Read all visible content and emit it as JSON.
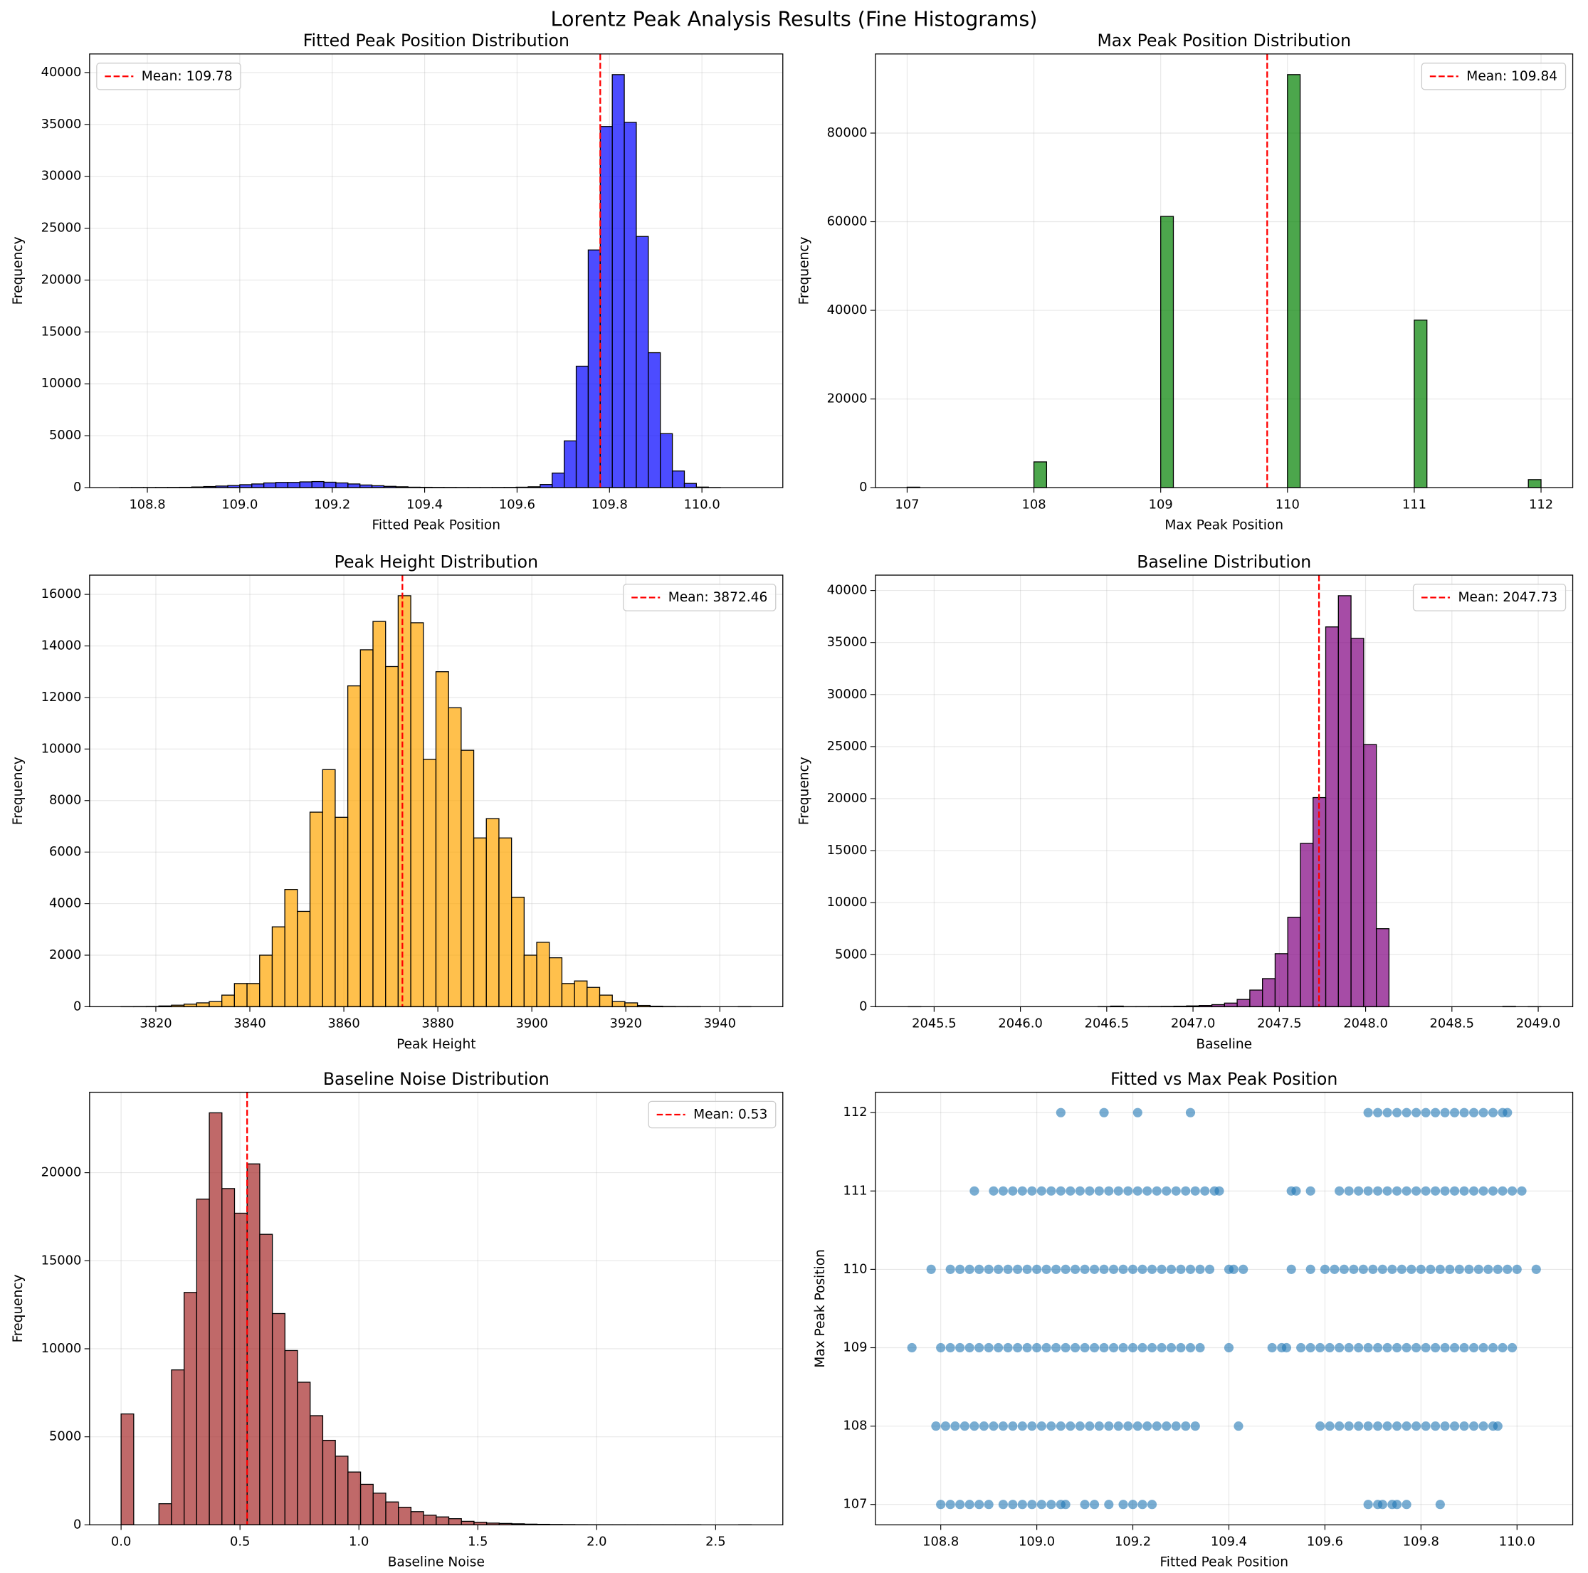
{
  "title": "Lorentz Peak Analysis Results (Fine Histograms)",
  "chart_data": [
    {
      "type": "histogram",
      "title": "Fitted Peak Position Distribution",
      "x_label": "Fitted Peak Position",
      "y_label": "Frequency",
      "bins": [
        108.74,
        108.766,
        108.792,
        108.818,
        108.844,
        108.87,
        108.896,
        108.922,
        108.948,
        108.974,
        109.0,
        109.026,
        109.052,
        109.078,
        109.104,
        109.13,
        109.156,
        109.182,
        109.208,
        109.234,
        109.26,
        109.286,
        109.312,
        109.338,
        109.364,
        109.39,
        109.416,
        109.442,
        109.468,
        109.494,
        109.52,
        109.546,
        109.572,
        109.598,
        109.624,
        109.65,
        109.676,
        109.702,
        109.728,
        109.754,
        109.78,
        109.806,
        109.832,
        109.858,
        109.884,
        109.91,
        109.936,
        109.962,
        109.988,
        110.014,
        110.04
      ],
      "counts": [
        5,
        10,
        10,
        15,
        20,
        30,
        60,
        100,
        150,
        200,
        280,
        350,
        450,
        500,
        500,
        550,
        580,
        520,
        450,
        350,
        250,
        180,
        120,
        80,
        40,
        30,
        20,
        15,
        10,
        10,
        10,
        15,
        20,
        40,
        80,
        300,
        1400,
        4500,
        11700,
        22900,
        34800,
        39800,
        35200,
        24200,
        13000,
        5200,
        1600,
        400,
        50,
        5
      ],
      "color": "blue",
      "alpha": 0.7,
      "xlim": [
        108.675,
        110.175
      ],
      "ylim": [
        0,
        41790
      ],
      "xticks": [
        108.8,
        {
          "value": 109,
          "label": "109.0"
        },
        109.2,
        109.4,
        109.6,
        109.8,
        {
          "value": 110,
          "label": "110.0"
        }
      ],
      "yticks": [
        0,
        5000,
        10000,
        15000,
        20000,
        25000,
        30000,
        35000,
        40000
      ],
      "grid": true,
      "mean_line": {
        "x": 109.78,
        "label": "Mean: 109.78",
        "color": "red"
      },
      "legend": "upper left"
    },
    {
      "type": "histogram",
      "title": "Max Peak Position Distribution",
      "x_label": "Max Peak Position",
      "y_label": "Frequency",
      "bins": [
        107.0,
        107.1,
        107.2,
        107.3,
        107.4,
        107.5,
        107.6,
        107.7,
        107.8,
        107.9,
        108.0,
        108.1,
        108.2,
        108.3,
        108.4,
        108.5,
        108.6,
        108.7,
        108.8,
        108.9,
        109.0,
        109.1,
        109.2,
        109.3,
        109.4,
        109.5,
        109.6,
        109.7,
        109.8,
        109.9,
        110.0,
        110.1,
        110.2,
        110.3,
        110.4,
        110.5,
        110.6,
        110.7,
        110.8,
        110.9,
        111.0,
        111.1,
        111.2,
        111.3,
        111.4,
        111.5,
        111.6,
        111.7,
        111.8,
        111.9,
        112.0
      ],
      "counts": [
        100,
        0,
        0,
        0,
        0,
        0,
        0,
        0,
        0,
        0,
        5800,
        0,
        0,
        0,
        0,
        0,
        0,
        0,
        0,
        0,
        61200,
        0,
        0,
        0,
        0,
        0,
        0,
        0,
        0,
        0,
        93200,
        0,
        0,
        0,
        0,
        0,
        0,
        0,
        0,
        0,
        37800,
        0,
        0,
        0,
        0,
        0,
        0,
        0,
        0,
        1800
      ],
      "color": "green",
      "alpha": 0.7,
      "xlim": [
        106.75,
        112.25
      ],
      "ylim": [
        0,
        97860
      ],
      "xticks": [
        107,
        108,
        109,
        110,
        111,
        112
      ],
      "yticks": [
        0,
        20000,
        40000,
        60000,
        80000
      ],
      "grid": true,
      "mean_line": {
        "x": 109.84,
        "label": "Mean: 109.84",
        "color": "red"
      },
      "legend": "upper right"
    },
    {
      "type": "histogram",
      "title": "Peak Height Distribution",
      "x_label": "Peak Height",
      "y_label": "Frequency",
      "bins": [
        3812.6,
        3815.28,
        3817.96,
        3820.64,
        3823.32,
        3826.0,
        3828.68,
        3831.36,
        3834.04,
        3836.72,
        3839.4,
        3842.08,
        3844.76,
        3847.44,
        3850.12,
        3852.8,
        3855.48,
        3858.16,
        3860.84,
        3863.52,
        3866.2,
        3868.88,
        3871.56,
        3874.24,
        3876.92,
        3879.6,
        3882.28,
        3884.96,
        3887.64,
        3890.32,
        3893.0,
        3895.68,
        3898.36,
        3901.04,
        3903.72,
        3906.4,
        3909.08,
        3911.76,
        3914.44,
        3917.12,
        3919.8,
        3922.48,
        3925.16,
        3927.84,
        3930.52,
        3933.2,
        3935.88,
        3938.56,
        3941.24,
        3943.92,
        3946.6
      ],
      "counts": [
        2,
        5,
        10,
        30,
        60,
        100,
        150,
        200,
        450,
        900,
        900,
        2000,
        3100,
        4550,
        3700,
        7550,
        9200,
        7350,
        12450,
        13850,
        14950,
        13200,
        15950,
        14900,
        9600,
        13000,
        11600,
        9950,
        6550,
        7300,
        6550,
        4250,
        2000,
        2500,
        1900,
        900,
        1000,
        750,
        450,
        200,
        150,
        50,
        20,
        10,
        5,
        5,
        0,
        0,
        0,
        2
      ],
      "color": "orange",
      "alpha": 0.7,
      "xlim": [
        3805.9,
        3953.4
      ],
      "ylim": [
        0,
        16747.5
      ],
      "xticks": [
        3820,
        3840,
        3860,
        3880,
        3900,
        3920,
        3940
      ],
      "yticks": [
        0,
        2000,
        4000,
        6000,
        8000,
        10000,
        12000,
        14000,
        16000
      ],
      "grid": true,
      "mean_line": {
        "x": 3872.46,
        "label": "Mean: 3872.46",
        "color": "red"
      },
      "legend": "upper right"
    },
    {
      "type": "histogram",
      "title": "Baseline Distribution",
      "x_label": "Baseline",
      "y_label": "Frequency",
      "bins": [
        2045.35,
        2045.4233,
        2045.4966,
        2045.5699,
        2045.6432,
        2045.7165,
        2045.7898,
        2045.8631,
        2045.9364,
        2046.0097,
        2046.083,
        2046.1563,
        2046.2296,
        2046.3029,
        2046.3762,
        2046.4495,
        2046.5228,
        2046.5961,
        2046.6694,
        2046.7427,
        2046.816,
        2046.8893,
        2046.9626,
        2047.0359,
        2047.1092,
        2047.1825,
        2047.2558,
        2047.3291,
        2047.4024,
        2047.4757,
        2047.549,
        2047.6223,
        2047.6956,
        2047.7689,
        2047.8422,
        2047.9155,
        2047.9888,
        2048.0621,
        2048.1354,
        2048.2087,
        2048.282,
        2048.3553,
        2048.4286,
        2048.5019,
        2048.5752,
        2048.6485,
        2048.7218,
        2048.7951,
        2048.8684,
        2048.9417,
        2049.015
      ],
      "counts": [
        1,
        0,
        0,
        0,
        0,
        0,
        0,
        0,
        0,
        0,
        0,
        0,
        0,
        0,
        0,
        10,
        60,
        5,
        10,
        20,
        30,
        50,
        80,
        120,
        200,
        350,
        700,
        1600,
        2700,
        5100,
        8600,
        15700,
        20100,
        36500,
        39500,
        35400,
        25200,
        7500,
        0,
        0,
        0,
        0,
        0,
        0,
        0,
        0,
        0,
        30,
        0,
        1
      ],
      "color": "purple",
      "alpha": 0.7,
      "xlim": [
        2045.16,
        2049.2
      ],
      "ylim": [
        0,
        41475
      ],
      "xticks": [
        2045.5,
        {
          "value": 2046,
          "label": "2046.0"
        },
        2046.5,
        {
          "value": 2047,
          "label": "2047.0"
        },
        2047.5,
        {
          "value": 2048,
          "label": "2048.0"
        },
        2048.5,
        {
          "value": 2049,
          "label": "2049.0"
        }
      ],
      "yticks": [
        0,
        5000,
        10000,
        15000,
        20000,
        25000,
        30000,
        35000,
        40000
      ],
      "grid": true,
      "mean_line": {
        "x": 2047.73,
        "label": "Mean: 2047.73",
        "color": "red"
      },
      "legend": "upper right"
    },
    {
      "type": "histogram",
      "title": "Baseline Noise Distribution",
      "x_label": "Baseline Noise",
      "y_label": "Frequency",
      "bins": [
        0,
        0.053,
        0.106,
        0.159,
        0.212,
        0.265,
        0.318,
        0.371,
        0.424,
        0.477,
        0.53,
        0.583,
        0.636,
        0.689,
        0.742,
        0.795,
        0.848,
        0.901,
        0.954,
        1.007,
        1.06,
        1.113,
        1.166,
        1.219,
        1.272,
        1.325,
        1.378,
        1.431,
        1.484,
        1.537,
        1.59,
        1.643,
        1.696,
        1.749,
        1.802,
        1.855,
        1.908,
        1.961,
        2.014,
        2.067,
        2.12,
        2.173,
        2.226,
        2.279,
        2.332,
        2.385,
        2.438,
        2.491,
        2.544,
        2.597,
        2.65
      ],
      "counts": [
        6300,
        0,
        0,
        1200,
        8800,
        13200,
        18500,
        23400,
        19100,
        17700,
        20500,
        16500,
        12000,
        9900,
        8100,
        6200,
        4800,
        3900,
        3000,
        2300,
        1800,
        1300,
        1000,
        750,
        550,
        450,
        350,
        200,
        150,
        100,
        80,
        60,
        40,
        30,
        20,
        15,
        10,
        8,
        5,
        4,
        3,
        2,
        2,
        1,
        1,
        1,
        0,
        0,
        0,
        1
      ],
      "color": "brown",
      "alpha": 0.7,
      "xlim": [
        -0.1325,
        2.7825
      ],
      "ylim": [
        0,
        24570
      ],
      "xticks": [
        {
          "value": 0,
          "label": "0.0"
        },
        0.5,
        {
          "value": 1,
          "label": "1.0"
        },
        1.5,
        {
          "value": 2,
          "label": "2.0"
        },
        2.5
      ],
      "yticks": [
        0,
        5000,
        10000,
        15000,
        20000
      ],
      "grid": true,
      "mean_line": {
        "x": 0.53,
        "label": "Mean: 0.53",
        "color": "red"
      },
      "legend": "upper right"
    },
    {
      "type": "scatter",
      "title": "Fitted vs Max Peak Position",
      "x_label": "Fitted Peak Position",
      "y_label": "Max Peak Position",
      "x": [
        109.05,
        109.14,
        109.21,
        109.32,
        109.69,
        109.71,
        109.73,
        109.75,
        109.77,
        109.79,
        109.81,
        109.83,
        109.85,
        109.87,
        109.89,
        109.91,
        109.93,
        109.95,
        109.97,
        109.98,
        108.87,
        108.91,
        108.93,
        108.95,
        108.97,
        108.99,
        109.01,
        109.03,
        109.05,
        109.07,
        109.09,
        109.11,
        109.13,
        109.15,
        109.17,
        109.19,
        109.21,
        109.23,
        109.25,
        109.27,
        109.29,
        109.31,
        109.33,
        109.35,
        109.37,
        109.38,
        109.53,
        109.54,
        109.57,
        109.63,
        109.65,
        109.67,
        109.69,
        109.71,
        109.73,
        109.75,
        109.77,
        109.79,
        109.81,
        109.83,
        109.85,
        109.87,
        109.89,
        109.91,
        109.93,
        109.95,
        109.97,
        109.99,
        110.01,
        108.78,
        108.82,
        108.84,
        108.86,
        108.88,
        108.9,
        108.92,
        108.94,
        108.96,
        108.98,
        109,
        109.02,
        109.04,
        109.06,
        109.08,
        109.1,
        109.12,
        109.14,
        109.16,
        109.18,
        109.2,
        109.22,
        109.24,
        109.26,
        109.28,
        109.3,
        109.32,
        109.34,
        109.36,
        109.4,
        109.41,
        109.43,
        109.53,
        109.57,
        109.6,
        109.62,
        109.64,
        109.66,
        109.68,
        109.7,
        109.72,
        109.74,
        109.76,
        109.78,
        109.8,
        109.82,
        109.84,
        109.86,
        109.88,
        109.9,
        109.92,
        109.94,
        109.96,
        109.98,
        110,
        110.04,
        108.74,
        108.8,
        108.82,
        108.84,
        108.86,
        108.88,
        108.9,
        108.92,
        108.94,
        108.96,
        108.98,
        109,
        109.02,
        109.04,
        109.06,
        109.08,
        109.1,
        109.12,
        109.14,
        109.16,
        109.18,
        109.2,
        109.22,
        109.24,
        109.26,
        109.28,
        109.3,
        109.32,
        109.34,
        109.4,
        109.49,
        109.51,
        109.52,
        109.55,
        109.57,
        109.59,
        109.61,
        109.63,
        109.65,
        109.67,
        109.69,
        109.71,
        109.73,
        109.75,
        109.77,
        109.79,
        109.81,
        109.83,
        109.85,
        109.87,
        109.89,
        109.91,
        109.93,
        109.95,
        109.97,
        109.99,
        108.79,
        108.81,
        108.83,
        108.85,
        108.87,
        108.89,
        108.91,
        108.93,
        108.95,
        108.97,
        108.99,
        109.01,
        109.03,
        109.05,
        109.07,
        109.09,
        109.11,
        109.13,
        109.15,
        109.17,
        109.19,
        109.21,
        109.23,
        109.25,
        109.27,
        109.29,
        109.31,
        109.33,
        109.42,
        109.59,
        109.61,
        109.63,
        109.65,
        109.67,
        109.69,
        109.71,
        109.73,
        109.75,
        109.77,
        109.79,
        109.81,
        109.83,
        109.85,
        109.87,
        109.89,
        109.91,
        109.93,
        109.95,
        109.96,
        108.8,
        108.82,
        108.84,
        108.86,
        108.88,
        108.9,
        108.93,
        108.95,
        108.97,
        108.99,
        109.01,
        109.03,
        109.05,
        109.06,
        109.1,
        109.12,
        109.15,
        109.18,
        109.2,
        109.22,
        109.24,
        109.69,
        109.71,
        109.72,
        109.74,
        109.75,
        109.77,
        109.84
      ],
      "y": [
        112,
        112,
        112,
        112,
        112,
        112,
        112,
        112,
        112,
        112,
        112,
        112,
        112,
        112,
        112,
        112,
        112,
        112,
        112,
        112,
        111,
        111,
        111,
        111,
        111,
        111,
        111,
        111,
        111,
        111,
        111,
        111,
        111,
        111,
        111,
        111,
        111,
        111,
        111,
        111,
        111,
        111,
        111,
        111,
        111,
        111,
        111,
        111,
        111,
        111,
        111,
        111,
        111,
        111,
        111,
        111,
        111,
        111,
        111,
        111,
        111,
        111,
        111,
        111,
        111,
        111,
        111,
        111,
        111,
        110,
        110,
        110,
        110,
        110,
        110,
        110,
        110,
        110,
        110,
        110,
        110,
        110,
        110,
        110,
        110,
        110,
        110,
        110,
        110,
        110,
        110,
        110,
        110,
        110,
        110,
        110,
        110,
        110,
        110,
        110,
        110,
        110,
        110,
        110,
        110,
        110,
        110,
        110,
        110,
        110,
        110,
        110,
        110,
        110,
        110,
        110,
        110,
        110,
        110,
        110,
        110,
        110,
        110,
        110,
        110,
        109,
        109,
        109,
        109,
        109,
        109,
        109,
        109,
        109,
        109,
        109,
        109,
        109,
        109,
        109,
        109,
        109,
        109,
        109,
        109,
        109,
        109,
        109,
        109,
        109,
        109,
        109,
        109,
        109,
        109,
        109,
        109,
        109,
        109,
        109,
        109,
        109,
        109,
        109,
        109,
        109,
        109,
        109,
        109,
        109,
        109,
        109,
        109,
        109,
        109,
        109,
        109,
        109,
        109,
        109,
        109,
        108,
        108,
        108,
        108,
        108,
        108,
        108,
        108,
        108,
        108,
        108,
        108,
        108,
        108,
        108,
        108,
        108,
        108,
        108,
        108,
        108,
        108,
        108,
        108,
        108,
        108,
        108,
        108,
        108,
        108,
        108,
        108,
        108,
        108,
        108,
        108,
        108,
        108,
        108,
        108,
        108,
        108,
        108,
        108,
        108,
        108,
        108,
        108,
        108,
        107,
        107,
        107,
        107,
        107,
        107,
        107,
        107,
        107,
        107,
        107,
        107,
        107,
        107,
        107,
        107,
        107,
        107,
        107,
        107,
        107,
        107,
        107,
        107,
        107,
        107,
        107,
        107
      ],
      "color": "#1f77b4",
      "alpha": 0.6,
      "xlim": [
        108.664,
        110.116
      ],
      "ylim": [
        106.74,
        112.26
      ],
      "xticks": [
        108.8,
        {
          "value": 109,
          "label": "109.0"
        },
        109.2,
        109.4,
        109.6,
        109.8,
        {
          "value": 110,
          "label": "110.0"
        }
      ],
      "yticks": [
        107,
        108,
        109,
        110,
        111,
        112
      ],
      "grid": true
    }
  ]
}
